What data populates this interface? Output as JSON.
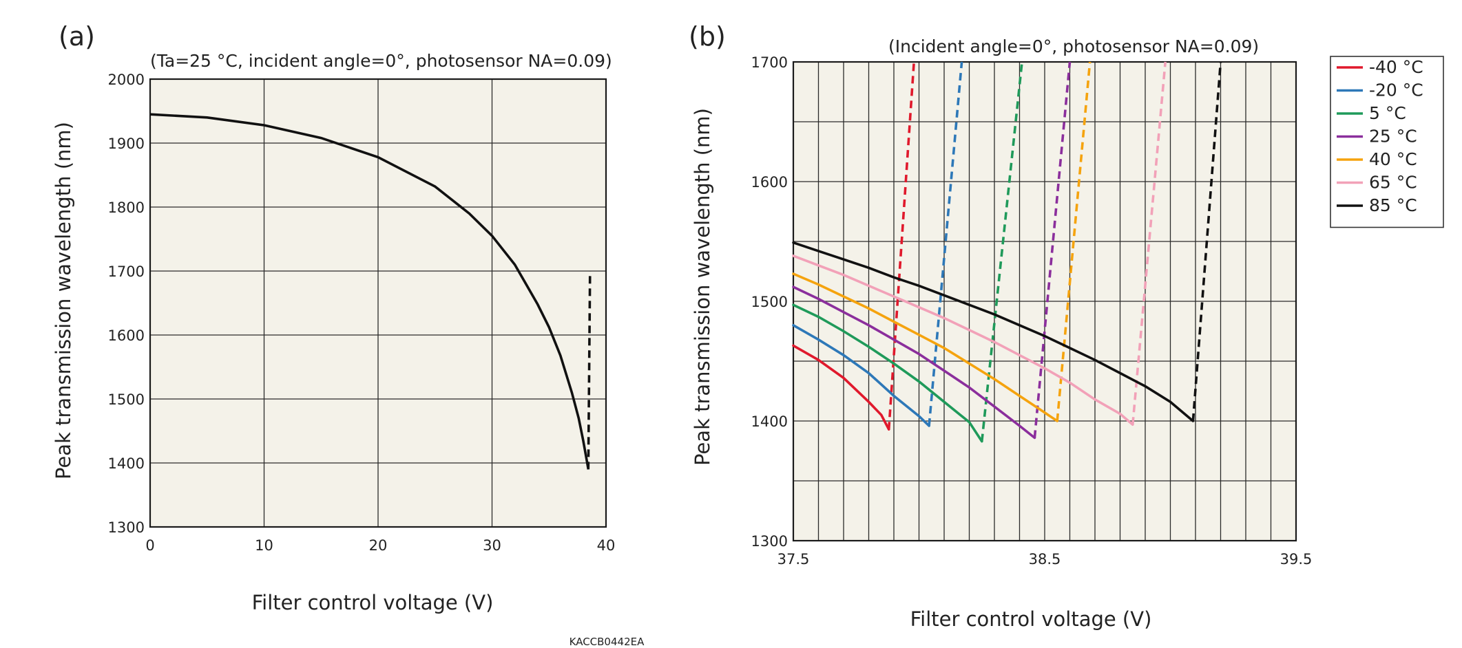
{
  "figure_code": "KACCB0442EA",
  "chart_data": [
    {
      "type": "line",
      "panel_label": "(a)",
      "title": "(Ta=25 °C, incident angle=0°, photosensor NA=0.09)",
      "xlabel": "Filter control voltage (V)",
      "ylabel": "Peak transmission wavelength (nm)",
      "xlim": [
        0,
        40
      ],
      "ylim": [
        1300,
        2000
      ],
      "xticks": [
        0,
        10,
        20,
        30,
        40
      ],
      "yticks": [
        1300,
        1400,
        1500,
        1600,
        1700,
        1800,
        1900,
        2000
      ],
      "grid": true,
      "plot_background": "#f4f2e9",
      "series": [
        {
          "color": "#111111",
          "style": "solid",
          "points": [
            [
              0,
              1945
            ],
            [
              5,
              1940
            ],
            [
              10,
              1928
            ],
            [
              15,
              1908
            ],
            [
              20,
              1878
            ],
            [
              25,
              1832
            ],
            [
              28,
              1790
            ],
            [
              30,
              1755
            ],
            [
              32,
              1710
            ],
            [
              34,
              1648
            ],
            [
              35,
              1612
            ],
            [
              36,
              1568
            ],
            [
              37,
              1510
            ],
            [
              37.6,
              1470
            ],
            [
              38,
              1435
            ],
            [
              38.3,
              1405
            ],
            [
              38.45,
              1390
            ]
          ]
        },
        {
          "color": "#111111",
          "style": "dashed",
          "points": [
            [
              38.45,
              1390
            ],
            [
              38.6,
              1700
            ]
          ]
        }
      ]
    },
    {
      "type": "line",
      "panel_label": "(b)",
      "title": "(Incident angle=0°, photosensor NA=0.09)",
      "xlabel": "Filter control voltage (V)",
      "ylabel": "Peak transmission wavelength (nm)",
      "xlim": [
        37.5,
        39.5
      ],
      "ylim": [
        1300,
        1700
      ],
      "xticks": [
        37.5,
        38.5,
        39.5
      ],
      "yticks": [
        1300,
        1400,
        1500,
        1600,
        1700
      ],
      "grid_x_step": 0.1,
      "grid_y_step": 50,
      "grid": true,
      "plot_background": "#f4f2e9",
      "legend_position": "outside-right",
      "series": [
        {
          "name": "-40 °C",
          "color": "#e0192c",
          "solid": [
            [
              37.5,
              1463
            ],
            [
              37.6,
              1451
            ],
            [
              37.7,
              1436
            ],
            [
              37.8,
              1416
            ],
            [
              37.85,
              1405
            ],
            [
              37.88,
              1393
            ]
          ],
          "dashed": [
            [
              37.88,
              1393
            ],
            [
              37.98,
              1700
            ]
          ]
        },
        {
          "name": "-20 °C",
          "color": "#2d78b8",
          "solid": [
            [
              37.5,
              1480
            ],
            [
              37.6,
              1468
            ],
            [
              37.7,
              1455
            ],
            [
              37.8,
              1440
            ],
            [
              37.9,
              1421
            ],
            [
              38.0,
              1404
            ],
            [
              38.04,
              1396
            ]
          ],
          "dashed": [
            [
              38.04,
              1396
            ],
            [
              38.17,
              1700
            ]
          ]
        },
        {
          "name": "5 °C",
          "color": "#1f9a5a",
          "solid": [
            [
              37.5,
              1497
            ],
            [
              37.6,
              1487
            ],
            [
              37.7,
              1475
            ],
            [
              37.8,
              1462
            ],
            [
              37.9,
              1448
            ],
            [
              38.0,
              1433
            ],
            [
              38.1,
              1416
            ],
            [
              38.2,
              1399
            ],
            [
              38.25,
              1383
            ]
          ],
          "dashed": [
            [
              38.25,
              1383
            ],
            [
              38.41,
              1700
            ]
          ]
        },
        {
          "name": "25 °C",
          "color": "#8b2e9c",
          "solid": [
            [
              37.5,
              1512
            ],
            [
              37.6,
              1502
            ],
            [
              37.7,
              1491
            ],
            [
              37.8,
              1480
            ],
            [
              37.9,
              1468
            ],
            [
              38.0,
              1456
            ],
            [
              38.1,
              1442
            ],
            [
              38.2,
              1428
            ],
            [
              38.3,
              1412
            ],
            [
              38.4,
              1396
            ],
            [
              38.46,
              1386
            ]
          ],
          "dashed": [
            [
              38.46,
              1386
            ],
            [
              38.6,
              1700
            ]
          ]
        },
        {
          "name": "40 °C",
          "color": "#f5a30e",
          "solid": [
            [
              37.5,
              1523
            ],
            [
              37.6,
              1514
            ],
            [
              37.7,
              1504
            ],
            [
              37.8,
              1494
            ],
            [
              37.9,
              1483
            ],
            [
              38.0,
              1472
            ],
            [
              38.1,
              1461
            ],
            [
              38.2,
              1448
            ],
            [
              38.3,
              1435
            ],
            [
              38.4,
              1421
            ],
            [
              38.5,
              1407
            ],
            [
              38.55,
              1400
            ]
          ],
          "dashed": [
            [
              38.55,
              1400
            ],
            [
              38.68,
              1700
            ]
          ]
        },
        {
          "name": "65 °C",
          "color": "#f2a1b8",
          "solid": [
            [
              37.5,
              1538
            ],
            [
              37.6,
              1530
            ],
            [
              37.7,
              1522
            ],
            [
              37.8,
              1513
            ],
            [
              37.9,
              1504
            ],
            [
              38.0,
              1495
            ],
            [
              38.1,
              1486
            ],
            [
              38.2,
              1476
            ],
            [
              38.3,
              1466
            ],
            [
              38.4,
              1455
            ],
            [
              38.5,
              1444
            ],
            [
              38.6,
              1432
            ],
            [
              38.7,
              1418
            ],
            [
              38.8,
              1406
            ],
            [
              38.85,
              1397
            ]
          ],
          "dashed": [
            [
              38.85,
              1397
            ],
            [
              38.98,
              1700
            ]
          ]
        },
        {
          "name": "85 °C",
          "color": "#111111",
          "solid": [
            [
              37.5,
              1549
            ],
            [
              37.6,
              1542
            ],
            [
              37.7,
              1535
            ],
            [
              37.8,
              1528
            ],
            [
              37.9,
              1520
            ],
            [
              38.0,
              1513
            ],
            [
              38.1,
              1505
            ],
            [
              38.2,
              1497
            ],
            [
              38.3,
              1489
            ],
            [
              38.4,
              1480
            ],
            [
              38.5,
              1471
            ],
            [
              38.6,
              1461
            ],
            [
              38.7,
              1451
            ],
            [
              38.8,
              1440
            ],
            [
              38.9,
              1429
            ],
            [
              39.0,
              1416
            ],
            [
              39.09,
              1400
            ]
          ],
          "dashed": [
            [
              39.09,
              1400
            ],
            [
              39.2,
              1700
            ]
          ]
        }
      ]
    }
  ]
}
